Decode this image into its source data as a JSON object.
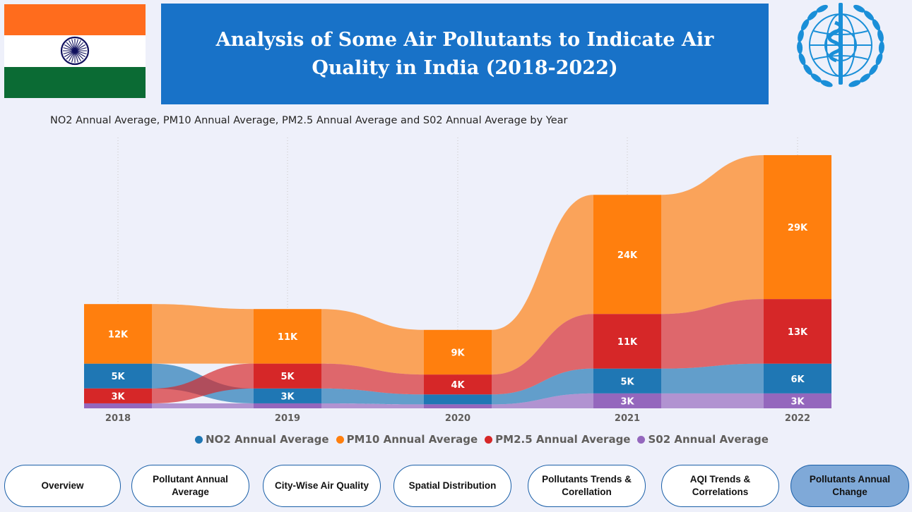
{
  "header": {
    "title": "Analysis of Some Air Pollutants to Indicate Air Quality in India (2018-2022)",
    "flag_colors": {
      "saffron": "#ff6c1d",
      "white": "#ffffff",
      "green": "#0b6b34",
      "chakra": "#10105e"
    },
    "emblem_color": "#1a8fd8"
  },
  "chart_data": {
    "type": "ribbon",
    "title": "NO2 Annual Average, PM10 Annual Average, PM2.5 Annual Average and S02 Annual Average by Year",
    "categories": [
      "2018",
      "2019",
      "2020",
      "2021",
      "2022"
    ],
    "series": [
      {
        "name": "NO2 Annual Average",
        "color": "#1f77b4",
        "values": [
          5000,
          3000,
          2000,
          5000,
          6000
        ],
        "labels": [
          "5K",
          "3K",
          "",
          "5K",
          "6K"
        ]
      },
      {
        "name": "PM10 Annual Average",
        "color": "#ff7f0e",
        "values": [
          12000,
          11000,
          9000,
          24000,
          29000
        ],
        "labels": [
          "12K",
          "11K",
          "9K",
          "24K",
          "29K"
        ]
      },
      {
        "name": "PM2.5 Annual Average",
        "color": "#d62728",
        "values": [
          3000,
          5000,
          4000,
          11000,
          13000
        ],
        "labels": [
          "3K",
          "5K",
          "4K",
          "11K",
          "13K"
        ]
      },
      {
        "name": "S02 Annual Average",
        "color": "#9467bd",
        "values": [
          1000,
          1000,
          800,
          3000,
          3000
        ],
        "labels": [
          "",
          "",
          "",
          "3K",
          "3K"
        ]
      }
    ],
    "ylim": [
      0,
      50000
    ],
    "grid": "vertical dotted",
    "legend_position": "bottom"
  },
  "nav": [
    {
      "label": "Overview",
      "active": false
    },
    {
      "label": "Pollutant Annual Average",
      "active": false
    },
    {
      "label": "City-Wise Air Quality",
      "active": false
    },
    {
      "label": "Spatial Distribution",
      "active": false
    },
    {
      "label": "Pollutants Trends & Corellation",
      "active": false
    },
    {
      "label": "AQI Trends & Correlations",
      "active": false
    },
    {
      "label": "Pollutants Annual Change",
      "active": true
    }
  ]
}
